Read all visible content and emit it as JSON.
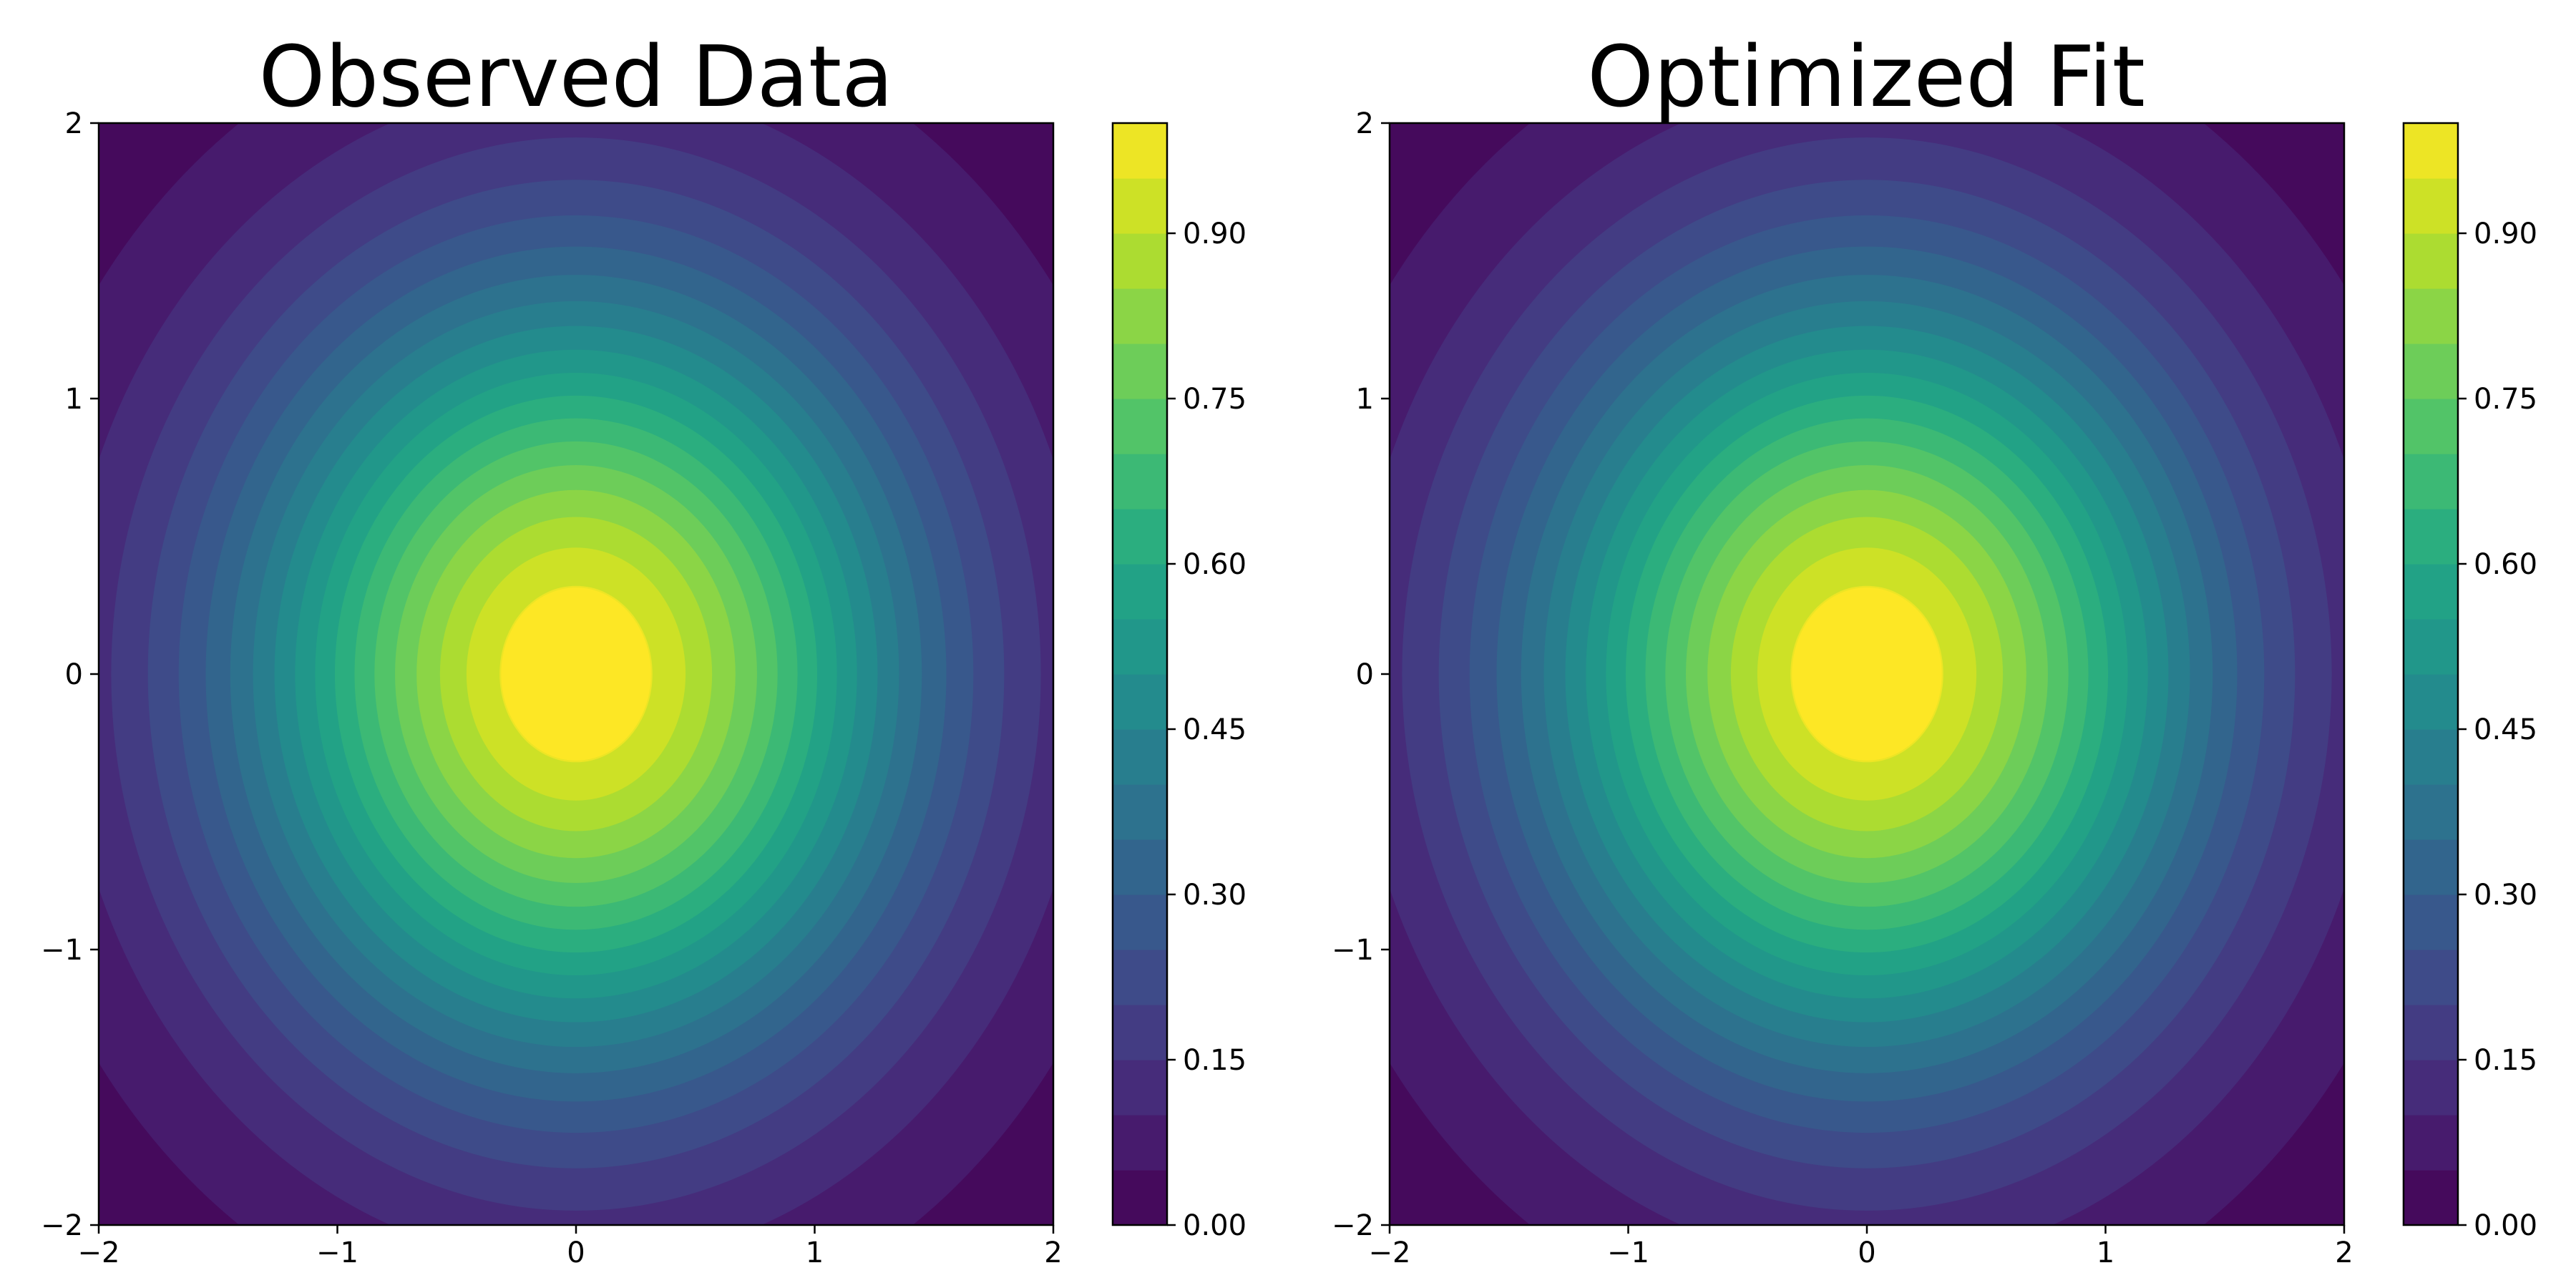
{
  "chart_data": [
    {
      "type": "contourf",
      "title": "Observed Data",
      "function": "exp(-(x^2 + y^2)/2)",
      "x_range": [
        -2,
        2
      ],
      "y_range": [
        -2,
        2
      ],
      "x_ticks": [
        -2,
        -1,
        0,
        1,
        2
      ],
      "y_ticks": [
        -2,
        -1,
        0,
        1,
        2
      ],
      "x_tick_labels": [
        "−2",
        "−1",
        "0",
        "1",
        "2"
      ],
      "y_tick_labels": [
        "−2",
        "−1",
        "0",
        "1",
        "2"
      ],
      "levels": [
        0.0,
        0.05,
        0.1,
        0.15,
        0.2,
        0.25,
        0.3,
        0.35,
        0.4,
        0.45,
        0.5,
        0.55,
        0.6,
        0.65,
        0.7,
        0.75,
        0.8,
        0.85,
        0.9,
        0.95,
        1.0
      ],
      "colormap": "viridis",
      "colorbar": {
        "range": [
          0.0,
          1.0
        ],
        "ticks": [
          0.0,
          0.15,
          0.3,
          0.45,
          0.6,
          0.75,
          0.9
        ],
        "tick_labels": [
          "0.00",
          "0.15",
          "0.30",
          "0.45",
          "0.60",
          "0.75",
          "0.90"
        ]
      },
      "peak": {
        "x": 0,
        "y": 0,
        "value": 1.0
      }
    },
    {
      "type": "contourf",
      "title": "Optimized Fit",
      "function": "exp(-(x^2 + y^2)/2)",
      "x_range": [
        -2,
        2
      ],
      "y_range": [
        -2,
        2
      ],
      "x_ticks": [
        -2,
        -1,
        0,
        1,
        2
      ],
      "y_ticks": [
        -2,
        -1,
        0,
        1,
        2
      ],
      "x_tick_labels": [
        "−2",
        "−1",
        "0",
        "1",
        "2"
      ],
      "y_tick_labels": [
        "−2",
        "−1",
        "0",
        "1",
        "2"
      ],
      "levels": [
        0.0,
        0.05,
        0.1,
        0.15,
        0.2,
        0.25,
        0.3,
        0.35,
        0.4,
        0.45,
        0.5,
        0.55,
        0.6,
        0.65,
        0.7,
        0.75,
        0.8,
        0.85,
        0.9,
        0.95,
        1.0
      ],
      "colormap": "viridis",
      "colorbar": {
        "range": [
          0.0,
          1.0
        ],
        "ticks": [
          0.0,
          0.15,
          0.3,
          0.45,
          0.6,
          0.75,
          0.9
        ],
        "tick_labels": [
          "0.00",
          "0.15",
          "0.30",
          "0.45",
          "0.60",
          "0.75",
          "0.90"
        ]
      },
      "peak": {
        "x": 0,
        "y": 0,
        "value": 1.0
      }
    }
  ]
}
